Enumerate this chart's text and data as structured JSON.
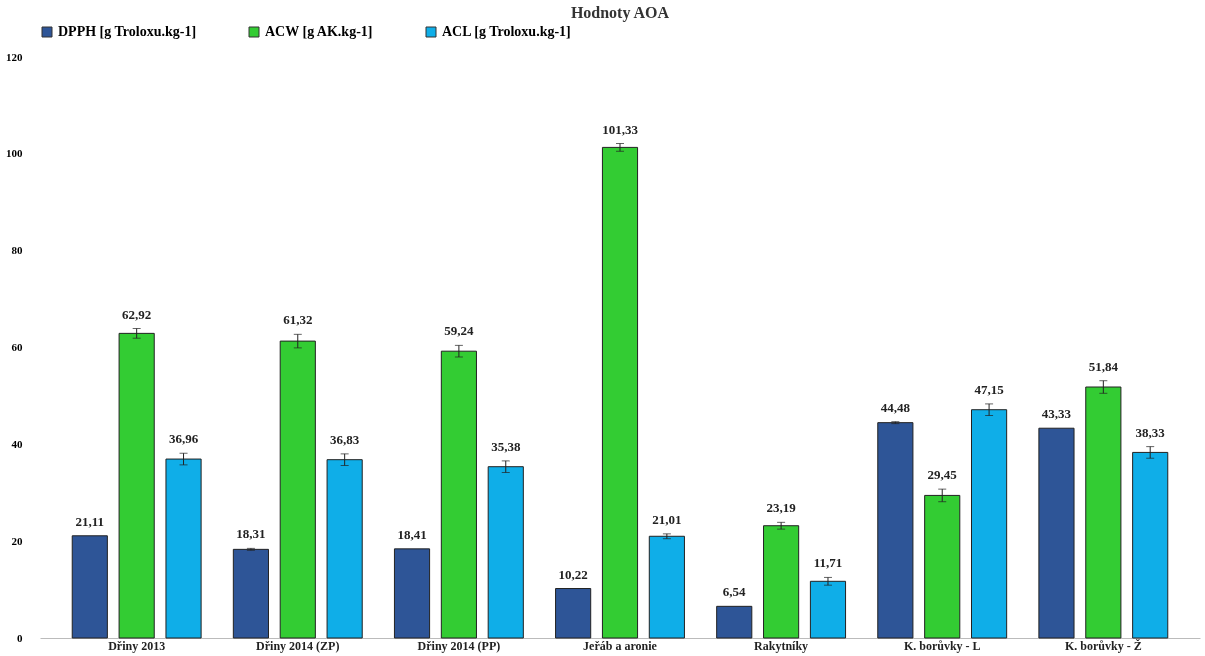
{
  "chart_data": {
    "type": "bar",
    "title": "Hodnoty AOA",
    "categories": [
      "Dřiny 2013",
      "Dřiny 2014 (ZP)",
      "Dřiny 2014 (PP)",
      "Jeřáb a aronie",
      "Rakytníky",
      "K. borůvky - L",
      "K. borůvky - Ž"
    ],
    "series": [
      {
        "name": "DPPH [g Troloxu.kg-1]",
        "color": "#2e5597",
        "values": [
          21.11,
          18.31,
          18.41,
          10.22,
          6.54,
          44.48,
          43.33
        ],
        "errors": [
          null,
          0.2,
          null,
          null,
          null,
          0.2,
          null
        ],
        "value_labels": [
          "21,11",
          "18,31",
          "18,41",
          "10,22",
          "6,54",
          "44,48",
          "43,33"
        ]
      },
      {
        "name": "ACW [g AK.kg-1]",
        "color": "#33cc33",
        "values": [
          62.92,
          61.32,
          59.24,
          101.33,
          23.19,
          29.45,
          51.84
        ],
        "errors": [
          1.0,
          1.4,
          1.2,
          0.8,
          0.7,
          1.3,
          1.3
        ],
        "value_labels": [
          "62,92",
          "61,32",
          "59,24",
          "101,33",
          "23,19",
          "29,45",
          "51,84"
        ]
      },
      {
        "name": "ACL [g Troloxu.kg-1]",
        "color": "#0faee8",
        "values": [
          36.96,
          36.83,
          35.38,
          21.01,
          11.71,
          47.15,
          38.33
        ],
        "errors": [
          1.2,
          1.2,
          1.2,
          0.5,
          0.8,
          1.2,
          1.2
        ],
        "value_labels": [
          "36,96",
          "36,83",
          "35,38",
          "21,01",
          "11,71",
          "47,15",
          "38,33"
        ]
      }
    ],
    "ylim": [
      0,
      120
    ],
    "yticks": [
      0,
      20,
      40,
      60,
      80,
      100,
      120
    ],
    "grid": false,
    "legend": "top"
  }
}
